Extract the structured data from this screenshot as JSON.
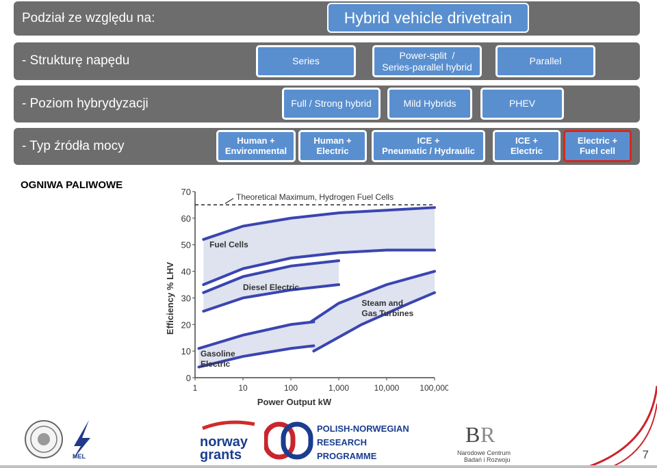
{
  "header": {
    "left_text": "Podział ze względu na:",
    "title": "Hybrid vehicle drivetrain"
  },
  "rows": {
    "structure": {
      "label": "- Strukturę napędu",
      "buttons": [
        "Series",
        "Power-split  /\nSeries-parallel hybrid",
        "Parallel"
      ]
    },
    "hybridization": {
      "label": "- Poziom hybrydyzacji",
      "buttons": [
        "Full / Strong  hybrid",
        "Mild Hybrids",
        "PHEV"
      ]
    },
    "power_source": {
      "label": "- Typ źródła mocy",
      "buttons": [
        "Human +\nEnvironmental",
        "Human +\nElectric",
        "ICE +\nPneumatic / Hydraulic",
        "ICE +\nElectric",
        "Electric +\nFuel cell"
      ]
    }
  },
  "section_title": "OGNIWA PALIWOWE",
  "chart_data": {
    "type": "area",
    "ylabel": "Efficiency % LHV",
    "xlabel": "Power Output kW",
    "x_scale": "log",
    "x_ticks": [
      "1",
      "10",
      "100",
      "1,000",
      "10,000",
      "100,000"
    ],
    "y_ticks": [
      "0",
      "10",
      "20",
      "30",
      "40",
      "50",
      "60",
      "70"
    ],
    "ylim": [
      0,
      70
    ],
    "reference_line": {
      "label": "Theoretical Maximum, Hydrogen Fuel Cells",
      "value": 65
    },
    "regions": [
      {
        "name": "Fuel Cells",
        "upper": [
          [
            1.5,
            52
          ],
          [
            10,
            57
          ],
          [
            100,
            60
          ],
          [
            1000,
            62
          ],
          [
            10000,
            63
          ],
          [
            100000,
            64
          ]
        ],
        "lower": [
          [
            1.5,
            35
          ],
          [
            10,
            41
          ],
          [
            100,
            45
          ],
          [
            1000,
            47
          ],
          [
            10000,
            48
          ],
          [
            100000,
            48
          ]
        ]
      },
      {
        "name": "Diesel Electric",
        "upper": [
          [
            1.5,
            32
          ],
          [
            10,
            38
          ],
          [
            100,
            42
          ],
          [
            1000,
            44
          ]
        ],
        "lower": [
          [
            1.5,
            25
          ],
          [
            10,
            30
          ],
          [
            100,
            33
          ],
          [
            1000,
            35
          ]
        ]
      },
      {
        "name": "Steam and Gas Turbines",
        "upper": [
          [
            100,
            16
          ],
          [
            1000,
            28
          ],
          [
            10000,
            35
          ],
          [
            100000,
            40
          ]
        ],
        "lower": [
          [
            300,
            10
          ],
          [
            3000,
            20
          ],
          [
            30000,
            28
          ],
          [
            100000,
            32
          ]
        ]
      },
      {
        "name": "Gasoline Electric",
        "upper": [
          [
            1.2,
            11
          ],
          [
            10,
            16
          ],
          [
            100,
            20
          ],
          [
            300,
            21
          ]
        ],
        "lower": [
          [
            1.2,
            4
          ],
          [
            10,
            8
          ],
          [
            100,
            11
          ],
          [
            300,
            12
          ]
        ]
      }
    ]
  },
  "footer": {
    "logo_norway": "norway\ngrants",
    "programme": [
      "POLISH-NORWEGIAN",
      "RESEARCH",
      "PROGRAMME"
    ],
    "ncbr": [
      "Narodowe Centrum",
      "Badań i Rozwoju"
    ],
    "mel": "MEL",
    "page": "7"
  },
  "colors": {
    "row_bg": "#6d6d6d",
    "button": "#5a8fcf",
    "curve": "#3a45b0",
    "fill": "#dfe2ef"
  }
}
